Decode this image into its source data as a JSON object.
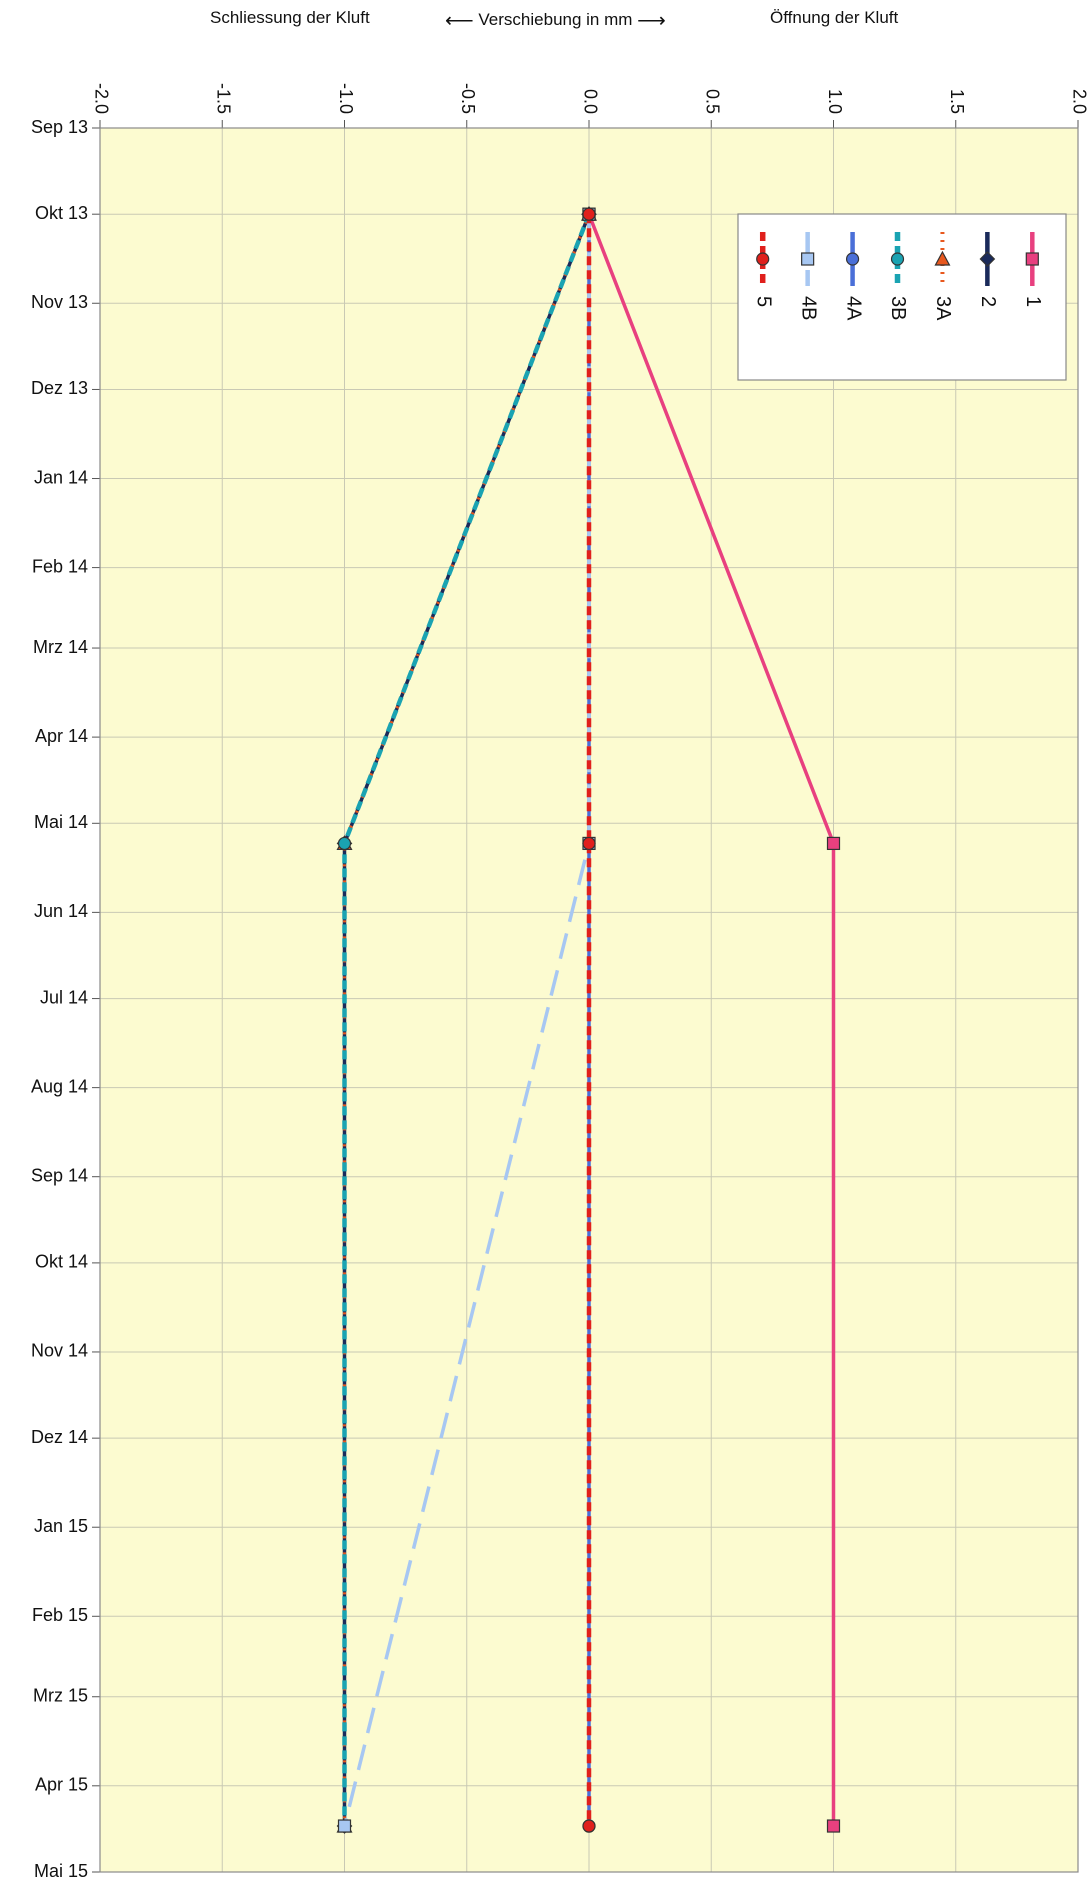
{
  "header": {
    "left": "Schliessung der Kluft",
    "center_arrow_left": "⟵",
    "center": "Verschiebung in mm",
    "center_arrow_right": "⟶",
    "right": "Öffnung der Kluft"
  },
  "chart_data": {
    "type": "line",
    "orientation": "rotated-time-vertical",
    "xlabel": "Verschiebung in mm",
    "xlim": [
      -2.0,
      2.0
    ],
    "x_ticks": [
      "-2.0",
      "-1.5",
      "-1.0",
      "-0.5",
      "0.0",
      "0.5",
      "1.0",
      "1.5",
      "2.0"
    ],
    "y_ticks": [
      "Sep 13",
      "Okt 13",
      "Nov 13",
      "Dez 13",
      "Jan 14",
      "Feb 14",
      "Mrz 14",
      "Apr 14",
      "Mai 14",
      "Jun 14",
      "Jul 14",
      "Aug 14",
      "Sep 14",
      "Okt 14",
      "Nov 14",
      "Dez 14",
      "Jan 15",
      "Feb 15",
      "Mrz 15",
      "Apr 15",
      "Mai 15"
    ],
    "ylim": [
      "2013-09-01",
      "2015-05-01"
    ],
    "grid": true,
    "legend_position": "top-right",
    "plot_background": "#fcfbd0",
    "series": [
      {
        "name": "1",
        "color": "#e8407f",
        "dash": "solid",
        "marker": "square",
        "points": [
          {
            "date": "2013-10-01",
            "value": 0.0
          },
          {
            "date": "2014-05-08",
            "value": 1.0
          },
          {
            "date": "2015-04-15",
            "value": 1.0
          }
        ]
      },
      {
        "name": "2",
        "color": "#1a2a5a",
        "dash": "solid",
        "marker": "diamond",
        "points": [
          {
            "date": "2013-10-01",
            "value": 0.0
          },
          {
            "date": "2014-05-08",
            "value": -1.0
          },
          {
            "date": "2015-04-15",
            "value": -1.0
          }
        ]
      },
      {
        "name": "3A",
        "color": "#e8581e",
        "dash": "dotted",
        "marker": "triangle",
        "points": [
          {
            "date": "2013-10-01",
            "value": 0.0
          },
          {
            "date": "2014-05-08",
            "value": -1.0
          },
          {
            "date": "2015-04-15",
            "value": -1.0
          }
        ]
      },
      {
        "name": "3B",
        "color": "#1aa3b2",
        "dash": "dashed",
        "marker": "circle",
        "points": [
          {
            "date": "2013-10-01",
            "value": 0.0
          },
          {
            "date": "2014-05-08",
            "value": -1.0
          },
          {
            "date": "2015-04-15",
            "value": -1.0
          }
        ]
      },
      {
        "name": "4A",
        "color": "#4a6fd8",
        "dash": "solid",
        "marker": "circle",
        "points": [
          {
            "date": "2013-10-01",
            "value": 0.0
          },
          {
            "date": "2014-05-08",
            "value": 0.0
          },
          {
            "date": "2015-04-15",
            "value": 0.0
          }
        ]
      },
      {
        "name": "4B",
        "color": "#a7c7f2",
        "dash": "long-dash",
        "marker": "square",
        "points": [
          {
            "date": "2013-10-01",
            "value": 0.0
          },
          {
            "date": "2014-05-08",
            "value": 0.0
          },
          {
            "date": "2015-04-15",
            "value": -1.0
          }
        ]
      },
      {
        "name": "5",
        "color": "#e0201c",
        "dash": "dashed",
        "marker": "circle",
        "points": [
          {
            "date": "2013-10-01",
            "value": 0.0
          },
          {
            "date": "2014-05-08",
            "value": 0.0
          },
          {
            "date": "2015-04-15",
            "value": 0.0
          }
        ]
      }
    ]
  }
}
